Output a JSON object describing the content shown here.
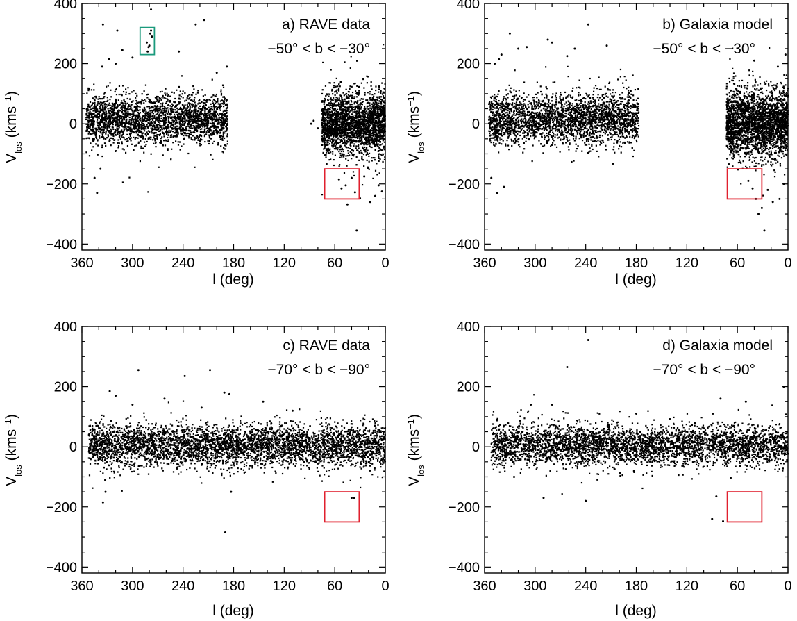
{
  "figure": {
    "colors": {
      "points": "#000000",
      "red_box": "#e0202e",
      "green_box": "#1a9a7c",
      "axes": "#000000"
    }
  },
  "chart_data": [
    {
      "type": "scatter",
      "panel_label": "a) RAVE data",
      "latitude_range": "−50° < b < −30°",
      "xlabel": "l (deg)",
      "ylabel": "V_los (kms^-1)",
      "xlim": [
        360,
        0
      ],
      "ylim": [
        -420,
        400
      ],
      "xticks": [
        360,
        300,
        240,
        180,
        120,
        60,
        0
      ],
      "xtick_labels": [
        "360",
        "300",
        "240",
        "180",
        "120",
        "60",
        "0"
      ],
      "yticks": [
        400,
        200,
        0,
        -200,
        -400
      ],
      "ytick_labels": [
        "400",
        "200",
        "0",
        "−200",
        "−400"
      ],
      "distribution": [
        {
          "l_range": [
            355,
            187
          ],
          "v_center": 15,
          "v_sigma": 40,
          "count": 2600
        },
        {
          "l_range": [
            75,
            0
          ],
          "v_center": 0,
          "v_sigma": 50,
          "count": 2400
        }
      ],
      "sample_points": [
        [
          283,
          270
        ],
        [
          281,
          255
        ],
        [
          279,
          300
        ],
        [
          278,
          310
        ],
        [
          277,
          290
        ],
        [
          282,
          240
        ],
        [
          280,
          260
        ],
        [
          278,
          380
        ],
        [
          335,
          330
        ],
        [
          318,
          310
        ],
        [
          312,
          245
        ],
        [
          320,
          200
        ],
        [
          328,
          215
        ],
        [
          336,
          190
        ],
        [
          225,
          330
        ],
        [
          215,
          345
        ],
        [
          245,
          240
        ],
        [
          300,
          220
        ],
        [
          200,
          170
        ],
        [
          188,
          190
        ],
        [
          55,
          -185
        ],
        [
          52,
          -215
        ],
        [
          47,
          -205
        ],
        [
          40,
          -180
        ],
        [
          36,
          -228
        ],
        [
          30,
          -248
        ],
        [
          25,
          -175
        ],
        [
          18,
          -260
        ],
        [
          12,
          -240
        ],
        [
          8,
          -205
        ],
        [
          4,
          -225
        ],
        [
          45,
          -268
        ],
        [
          34,
          -355
        ],
        [
          342,
          -230
        ],
        [
          345,
          -180
        ],
        [
          338,
          -150
        ],
        [
          80,
          -15
        ],
        [
          85,
          10
        ],
        [
          88,
          0
        ]
      ],
      "regions": [
        {
          "name": "stream-box",
          "color": "green",
          "l": [
            291,
            274
          ],
          "v": [
            230,
            320
          ]
        },
        {
          "name": "selection-box",
          "color": "red",
          "l": [
            72,
            31
          ],
          "v": [
            -250,
            -150
          ]
        }
      ]
    },
    {
      "type": "scatter",
      "panel_label": "b) Galaxia model",
      "latitude_range": "−50° < b < −30°",
      "xlabel": "l (deg)",
      "ylabel": "V_los (kms^-1)",
      "xlim": [
        360,
        0
      ],
      "ylim": [
        -420,
        400
      ],
      "xticks": [
        360,
        300,
        240,
        180,
        120,
        60,
        0
      ],
      "xtick_labels": [
        "360",
        "300",
        "240",
        "180",
        "120",
        "60",
        "0"
      ],
      "yticks": [
        400,
        200,
        0,
        -200,
        -400
      ],
      "ytick_labels": [
        "400",
        "200",
        "0",
        "−200",
        "−400"
      ],
      "distribution": [
        {
          "l_range": [
            355,
            177
          ],
          "v_center": 15,
          "v_sigma": 42,
          "count": 2700
        },
        {
          "l_range": [
            73,
            0
          ],
          "v_center": 0,
          "v_sigma": 55,
          "count": 2600
        }
      ],
      "sample_points": [
        [
          330,
          300
        ],
        [
          320,
          250
        ],
        [
          310,
          255
        ],
        [
          285,
          280
        ],
        [
          280,
          270
        ],
        [
          262,
          225
        ],
        [
          253,
          250
        ],
        [
          237,
          330
        ],
        [
          215,
          260
        ],
        [
          340,
          230
        ],
        [
          343,
          215
        ],
        [
          348,
          200
        ],
        [
          352,
          -180
        ],
        [
          345,
          -230
        ],
        [
          337,
          -210
        ],
        [
          47,
          -190
        ],
        [
          42,
          -215
        ],
        [
          38,
          -250
        ],
        [
          35,
          -300
        ],
        [
          31,
          -280
        ],
        [
          28,
          -355
        ],
        [
          24,
          -220
        ],
        [
          18,
          -260
        ],
        [
          10,
          -250
        ],
        [
          5,
          -200
        ],
        [
          3,
          230
        ],
        [
          12,
          190
        ],
        [
          40,
          210
        ]
      ],
      "regions": [
        {
          "name": "selection-box",
          "color": "red",
          "l": [
            72,
            31
          ],
          "v": [
            -250,
            -150
          ]
        }
      ]
    },
    {
      "type": "scatter",
      "panel_label": "c) RAVE data",
      "latitude_range": "−70° < b < −90°",
      "xlabel": "l (deg)",
      "ylabel": "V_los (kms^-1)",
      "xlim": [
        360,
        0
      ],
      "ylim": [
        -420,
        400
      ],
      "xticks": [
        360,
        300,
        240,
        180,
        120,
        60,
        0
      ],
      "xtick_labels": [
        "360",
        "300",
        "240",
        "180",
        "120",
        "60",
        "0"
      ],
      "yticks": [
        400,
        200,
        0,
        -200,
        -400
      ],
      "ytick_labels": [
        "400",
        "200",
        "0",
        "−200",
        "−400"
      ],
      "distribution": [
        {
          "l_range": [
            352,
            0
          ],
          "v_center": 5,
          "v_sigma": 35,
          "count": 4200
        }
      ],
      "sample_points": [
        [
          327,
          185
        ],
        [
          320,
          170
        ],
        [
          293,
          255
        ],
        [
          238,
          235
        ],
        [
          208,
          255
        ],
        [
          191,
          180
        ],
        [
          185,
          175
        ],
        [
          145,
          150
        ],
        [
          332,
          -150
        ],
        [
          335,
          -185
        ],
        [
          183,
          -150
        ],
        [
          190,
          -285
        ],
        [
          40,
          -170
        ],
        [
          37,
          -170
        ],
        [
          218,
          130
        ],
        [
          262,
          160
        ],
        [
          300,
          140
        ],
        [
          110,
          120
        ]
      ],
      "regions": [
        {
          "name": "selection-box",
          "color": "red",
          "l": [
            72,
            31
          ],
          "v": [
            -250,
            -150
          ]
        }
      ]
    },
    {
      "type": "scatter",
      "panel_label": "d) Galaxia model",
      "latitude_range": "−70° < b < −90°",
      "xlabel": "l (deg)",
      "ylabel": "V_los (kms^-1)",
      "xlim": [
        360,
        0
      ],
      "ylim": [
        -420,
        400
      ],
      "xticks": [
        360,
        300,
        240,
        180,
        120,
        60,
        0
      ],
      "xtick_labels": [
        "360",
        "300",
        "240",
        "180",
        "120",
        "60",
        "0"
      ],
      "yticks": [
        400,
        200,
        0,
        -200,
        -400
      ],
      "ytick_labels": [
        "400",
        "200",
        "0",
        "−200",
        "−400"
      ],
      "distribution": [
        {
          "l_range": [
            352,
            0
          ],
          "v_center": 5,
          "v_sigma": 33,
          "count": 3800
        }
      ],
      "sample_points": [
        [
          237,
          355
        ],
        [
          262,
          265
        ],
        [
          5,
          200
        ],
        [
          280,
          140
        ],
        [
          305,
          140
        ],
        [
          80,
          160
        ],
        [
          50,
          150
        ],
        [
          240,
          -180
        ],
        [
          290,
          -170
        ],
        [
          85,
          -165
        ],
        [
          77,
          -248
        ],
        [
          90,
          -240
        ],
        [
          325,
          -100
        ],
        [
          180,
          110
        ]
      ],
      "regions": [
        {
          "name": "selection-box",
          "color": "red",
          "l": [
            72,
            31
          ],
          "v": [
            -250,
            -150
          ]
        }
      ]
    }
  ]
}
